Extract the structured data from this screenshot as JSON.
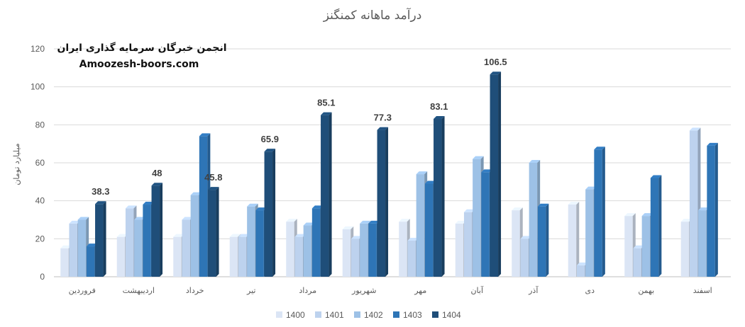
{
  "chart_data": {
    "type": "bar",
    "title": "درآمد ماهانه کمنگنز",
    "ylabel": "میلیارد تومان",
    "ylim": [
      0,
      120
    ],
    "yticks": [
      0,
      20,
      40,
      60,
      80,
      100,
      120
    ],
    "grid": true,
    "legend_position": "bottom",
    "categories": [
      "فروردین",
      "اردیبهشت",
      "خرداد",
      "تیر",
      "مرداد",
      "شهریور",
      "مهر",
      "آبان",
      "آذر",
      "دی",
      "بهمن",
      "اسفند"
    ],
    "series": [
      {
        "name": "1400",
        "color": "#dbe5f5",
        "values": [
          15,
          21,
          21,
          21,
          29,
          25,
          29,
          28,
          35,
          38,
          32,
          29
        ]
      },
      {
        "name": "1401",
        "color": "#bdd2ee",
        "values": [
          28,
          36,
          30,
          21,
          21,
          20,
          19,
          34,
          20,
          6,
          15,
          77
        ]
      },
      {
        "name": "1402",
        "color": "#9dc1e6",
        "values": [
          30,
          30,
          43,
          37,
          27,
          28,
          54,
          62,
          60,
          46,
          32,
          35
        ]
      },
      {
        "name": "1403",
        "color": "#2e75b6",
        "values": [
          16,
          38,
          74,
          35,
          36,
          28,
          49,
          55,
          37,
          67,
          52,
          69
        ]
      },
      {
        "name": "1404",
        "color": "#1f4e79",
        "values": [
          38.3,
          48,
          45.8,
          65.9,
          85.1,
          77.3,
          83.1,
          106.5,
          null,
          null,
          null,
          null
        ]
      }
    ],
    "data_labels": [
      "38.3",
      "48",
      "45.8",
      "65.9",
      "85.1",
      "77.3",
      "83.1",
      "106.5"
    ]
  },
  "watermark": {
    "line1": "انجمن خبرگان سرمایه گذاری ایران",
    "line2": "Amoozesh-boors.com"
  }
}
